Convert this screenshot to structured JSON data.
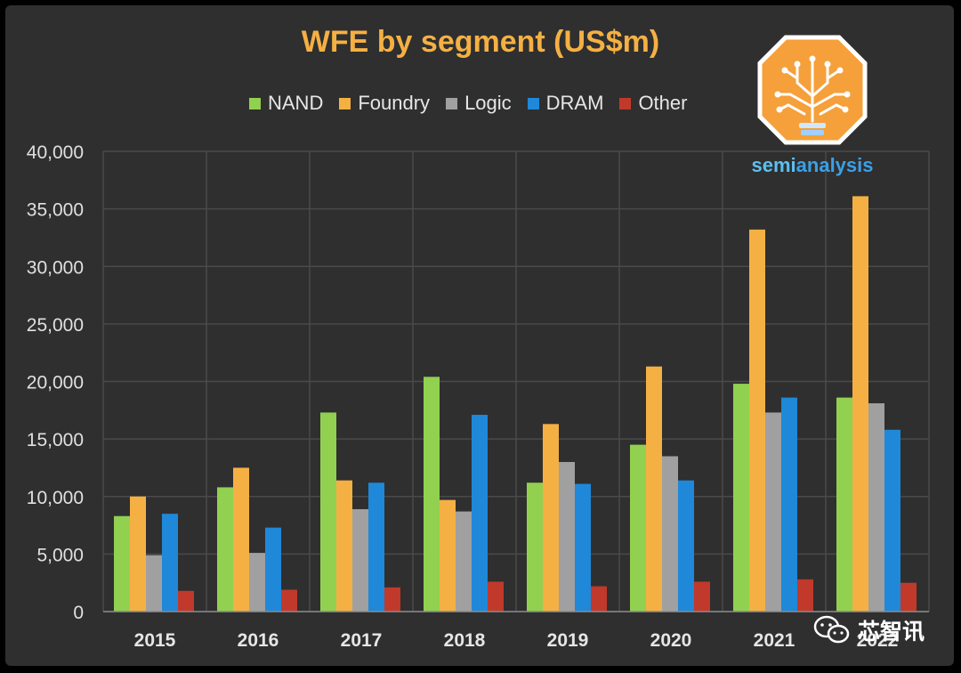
{
  "chart_data": {
    "type": "bar",
    "title": "WFE by segment (US$m)",
    "categories": [
      "2015",
      "2016",
      "2017",
      "2018",
      "2019",
      "2020",
      "2021",
      "2022"
    ],
    "series": [
      {
        "name": "NAND",
        "color": "#92d050",
        "values": [
          8300,
          10800,
          17300,
          20400,
          11200,
          14500,
          19800,
          18600
        ]
      },
      {
        "name": "Foundry",
        "color": "#f5b043",
        "values": [
          10000,
          12500,
          11400,
          9700,
          16300,
          21300,
          33200,
          36100
        ]
      },
      {
        "name": "Logic",
        "color": "#a0a0a0",
        "values": [
          4900,
          5100,
          8900,
          8700,
          13000,
          13500,
          17300,
          18100
        ]
      },
      {
        "name": "DRAM",
        "color": "#1f88d8",
        "values": [
          8500,
          7300,
          11200,
          17100,
          11100,
          11400,
          18600,
          15800
        ]
      },
      {
        "name": "Other",
        "color": "#c0392b",
        "values": [
          1800,
          1900,
          2100,
          2600,
          2200,
          2600,
          2800,
          2500
        ]
      }
    ],
    "ylim": [
      0,
      40000
    ],
    "yticks": [
      "0",
      "5,000",
      "10,000",
      "15,000",
      "20,000",
      "25,000",
      "30,000",
      "35,000",
      "40,000"
    ],
    "ytick_values": [
      0,
      5000,
      10000,
      15000,
      20000,
      25000,
      30000,
      35000,
      40000
    ],
    "grid": true,
    "legend_position": "top"
  },
  "logo": {
    "text_part1": "semi",
    "text_part2": "analysis",
    "icon": "lightbulb-circuit-icon"
  },
  "watermark": {
    "text": "芯智讯",
    "icon": "wechat-icon"
  }
}
